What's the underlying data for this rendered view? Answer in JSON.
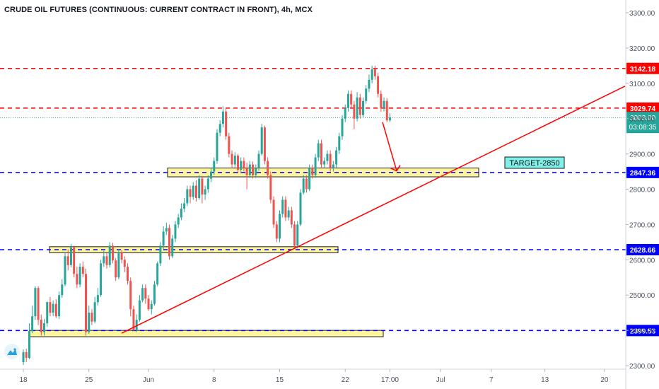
{
  "title": "CRUDE OIL FUTURES (CONTINUOUS: CURRENT CONTRACT IN FRONT), 4h, MCX",
  "chart_data": {
    "type": "candlestick",
    "y_axis": {
      "min": 2300,
      "max": 3300,
      "ticks": [
        2300,
        2400,
        2500,
        2600,
        2700,
        2800,
        2900,
        3000,
        3100,
        3200,
        3300
      ],
      "tick_labels": [
        "2300.00",
        "2400.00",
        "2500.00",
        "2600.00",
        "2700.00",
        "2800.00",
        "2900.00",
        "3000.00",
        "3100.00",
        "3200.00",
        "3300.00"
      ]
    },
    "x_axis": {
      "tick_labels": [
        "18",
        "25",
        "Jun",
        "8",
        "15",
        "22",
        "17:00",
        "Jul",
        "7",
        "13",
        "20"
      ]
    },
    "price_levels": [
      {
        "label": "3142.18",
        "value": 3142.18,
        "color": "#ff0000",
        "style": "dashed"
      },
      {
        "label": "3029.74",
        "value": 3029.74,
        "color": "#ff0000",
        "style": "dashed"
      },
      {
        "label": "2847.36",
        "value": 2847.36,
        "color": "#0000ff",
        "style": "dashed"
      },
      {
        "label": "2628.66",
        "value": 2628.66,
        "color": "#0000ff",
        "style": "dashed"
      },
      {
        "label": "2399.53",
        "value": 2399.53,
        "color": "#0000ff",
        "style": "dashed"
      }
    ],
    "last_price": {
      "label": "3003.00",
      "countdown": "03:08:35",
      "value": 3003.0,
      "color": "#26a69a"
    },
    "target_label": "TARGET-2850",
    "zones": [
      {
        "from": 2835,
        "to": 2860
      },
      {
        "from": 2620,
        "to": 2637
      },
      {
        "from": 2382,
        "to": 2400
      }
    ],
    "trendline": {
      "from": 2392,
      "to": 3092
    },
    "arrow": {
      "from": 2990,
      "to": 2848
    },
    "candles": [
      [
        2310,
        2338,
        2302,
        2346
      ],
      [
        2338,
        2322,
        2310,
        2348
      ],
      [
        2322,
        2398,
        2318,
        2420
      ],
      [
        2398,
        2440,
        2392,
        2470
      ],
      [
        2440,
        2520,
        2430,
        2525
      ],
      [
        2520,
        2430,
        2415,
        2525
      ],
      [
        2430,
        2395,
        2385,
        2445
      ],
      [
        2395,
        2420,
        2385,
        2432
      ],
      [
        2420,
        2480,
        2410,
        2482
      ],
      [
        2480,
        2450,
        2440,
        2495
      ],
      [
        2450,
        2475,
        2440,
        2485
      ],
      [
        2475,
        2440,
        2435,
        2488
      ],
      [
        2440,
        2500,
        2432,
        2510
      ],
      [
        2500,
        2530,
        2492,
        2545
      ],
      [
        2530,
        2610,
        2525,
        2620
      ],
      [
        2610,
        2585,
        2570,
        2630
      ],
      [
        2585,
        2635,
        2578,
        2645
      ],
      [
        2635,
        2560,
        2550,
        2640
      ],
      [
        2560,
        2530,
        2520,
        2580
      ],
      [
        2530,
        2580,
        2522,
        2590
      ],
      [
        2580,
        2560,
        2550,
        2595
      ],
      [
        2560,
        2395,
        2385,
        2575
      ],
      [
        2395,
        2450,
        2390,
        2470
      ],
      [
        2450,
        2425,
        2415,
        2460
      ],
      [
        2425,
        2480,
        2420,
        2495
      ],
      [
        2480,
        2500,
        2470,
        2520
      ],
      [
        2500,
        2590,
        2495,
        2600
      ],
      [
        2590,
        2610,
        2580,
        2625
      ],
      [
        2610,
        2585,
        2575,
        2620
      ],
      [
        2585,
        2640,
        2578,
        2650
      ],
      [
        2640,
        2598,
        2590,
        2648
      ],
      [
        2598,
        2550,
        2540,
        2605
      ],
      [
        2550,
        2620,
        2545,
        2630
      ],
      [
        2620,
        2600,
        2590,
        2628
      ],
      [
        2600,
        2580,
        2565,
        2610
      ],
      [
        2580,
        2540,
        2530,
        2590
      ],
      [
        2540,
        2460,
        2440,
        2550
      ],
      [
        2460,
        2400,
        2398,
        2470
      ],
      [
        2400,
        2430,
        2395,
        2445
      ],
      [
        2430,
        2485,
        2425,
        2500
      ],
      [
        2485,
        2520,
        2480,
        2530
      ],
      [
        2520,
        2490,
        2475,
        2530
      ],
      [
        2490,
        2460,
        2455,
        2500
      ],
      [
        2460,
        2475,
        2445,
        2485
      ],
      [
        2475,
        2530,
        2470,
        2540
      ],
      [
        2530,
        2590,
        2525,
        2595
      ],
      [
        2590,
        2640,
        2582,
        2650
      ],
      [
        2640,
        2680,
        2630,
        2695
      ],
      [
        2680,
        2690,
        2670,
        2705
      ],
      [
        2690,
        2610,
        2600,
        2700
      ],
      [
        2610,
        2660,
        2605,
        2670
      ],
      [
        2660,
        2700,
        2650,
        2710
      ],
      [
        2700,
        2720,
        2690,
        2730
      ],
      [
        2720,
        2745,
        2712,
        2760
      ],
      [
        2745,
        2760,
        2735,
        2775
      ],
      [
        2760,
        2800,
        2752,
        2810
      ],
      [
        2800,
        2778,
        2760,
        2810
      ],
      [
        2778,
        2810,
        2770,
        2820
      ],
      [
        2810,
        2775,
        2765,
        2825
      ],
      [
        2775,
        2830,
        2770,
        2840
      ],
      [
        2830,
        2785,
        2760,
        2838
      ],
      [
        2785,
        2800,
        2770,
        2810
      ],
      [
        2800,
        2830,
        2790,
        2840
      ],
      [
        2830,
        2850,
        2820,
        2860
      ],
      [
        2850,
        2880,
        2840,
        2890
      ],
      [
        2880,
        2960,
        2872,
        2970
      ],
      [
        2960,
        2985,
        2950,
        2995
      ],
      [
        2985,
        3020,
        2975,
        3035
      ],
      [
        3020,
        2950,
        2940,
        3030
      ],
      [
        2950,
        2900,
        2890,
        2960
      ],
      [
        2900,
        2870,
        2860,
        2910
      ],
      [
        2870,
        2895,
        2862,
        2905
      ],
      [
        2895,
        2855,
        2845,
        2900
      ],
      [
        2855,
        2880,
        2845,
        2890
      ],
      [
        2880,
        2860,
        2850,
        2890
      ],
      [
        2860,
        2840,
        2800,
        2875
      ],
      [
        2840,
        2870,
        2832,
        2880
      ],
      [
        2870,
        2840,
        2830,
        2878
      ],
      [
        2840,
        2860,
        2832,
        2870
      ],
      [
        2860,
        2900,
        2852,
        2910
      ],
      [
        2900,
        2975,
        2895,
        2985
      ],
      [
        2975,
        2880,
        2870,
        2980
      ],
      [
        2880,
        2840,
        2830,
        2890
      ],
      [
        2840,
        2770,
        2760,
        2850
      ],
      [
        2770,
        2700,
        2690,
        2780
      ],
      [
        2700,
        2660,
        2650,
        2710
      ],
      [
        2660,
        2730,
        2650,
        2740
      ],
      [
        2730,
        2770,
        2720,
        2780
      ],
      [
        2770,
        2720,
        2710,
        2780
      ],
      [
        2720,
        2740,
        2712,
        2750
      ],
      [
        2740,
        2700,
        2690,
        2750
      ],
      [
        2700,
        2640,
        2630,
        2710
      ],
      [
        2640,
        2700,
        2632,
        2710
      ],
      [
        2700,
        2790,
        2695,
        2800
      ],
      [
        2790,
        2830,
        2785,
        2840
      ],
      [
        2830,
        2800,
        2790,
        2840
      ],
      [
        2800,
        2860,
        2795,
        2870
      ],
      [
        2860,
        2840,
        2830,
        2870
      ],
      [
        2840,
        2890,
        2832,
        2900
      ],
      [
        2890,
        2930,
        2880,
        2940
      ],
      [
        2930,
        2870,
        2860,
        2940
      ],
      [
        2870,
        2880,
        2860,
        2890
      ],
      [
        2880,
        2900,
        2870,
        2910
      ],
      [
        2900,
        2860,
        2850,
        2910
      ],
      [
        2860,
        2870,
        2850,
        2880
      ],
      [
        2870,
        2910,
        2860,
        2920
      ],
      [
        2910,
        2950,
        2900,
        2960
      ],
      [
        2950,
        3000,
        2940,
        3010
      ],
      [
        3000,
        3030,
        2990,
        3040
      ],
      [
        3030,
        3070,
        3020,
        3080
      ],
      [
        3070,
        3040,
        3030,
        3080
      ],
      [
        3040,
        3000,
        2970,
        3050
      ],
      [
        3000,
        3060,
        2992,
        3075
      ],
      [
        3060,
        3010,
        3000,
        3070
      ],
      [
        3010,
        3050,
        3002,
        3060
      ],
      [
        3050,
        3085,
        3042,
        3095
      ],
      [
        3085,
        3110,
        3075,
        3125
      ],
      [
        3110,
        3140,
        3100,
        3150
      ],
      [
        3140,
        3120,
        3110,
        3150
      ],
      [
        3120,
        3070,
        3060,
        3130
      ],
      [
        3070,
        3030,
        3020,
        3080
      ],
      [
        3030,
        3050,
        3020,
        3060
      ],
      [
        3050,
        2995,
        2990,
        3058
      ],
      [
        2995,
        3003,
        2990,
        3015
      ]
    ]
  },
  "colors": {
    "up": "#26a69a",
    "down": "#ef5350",
    "zone_fill": "#fff59d"
  }
}
